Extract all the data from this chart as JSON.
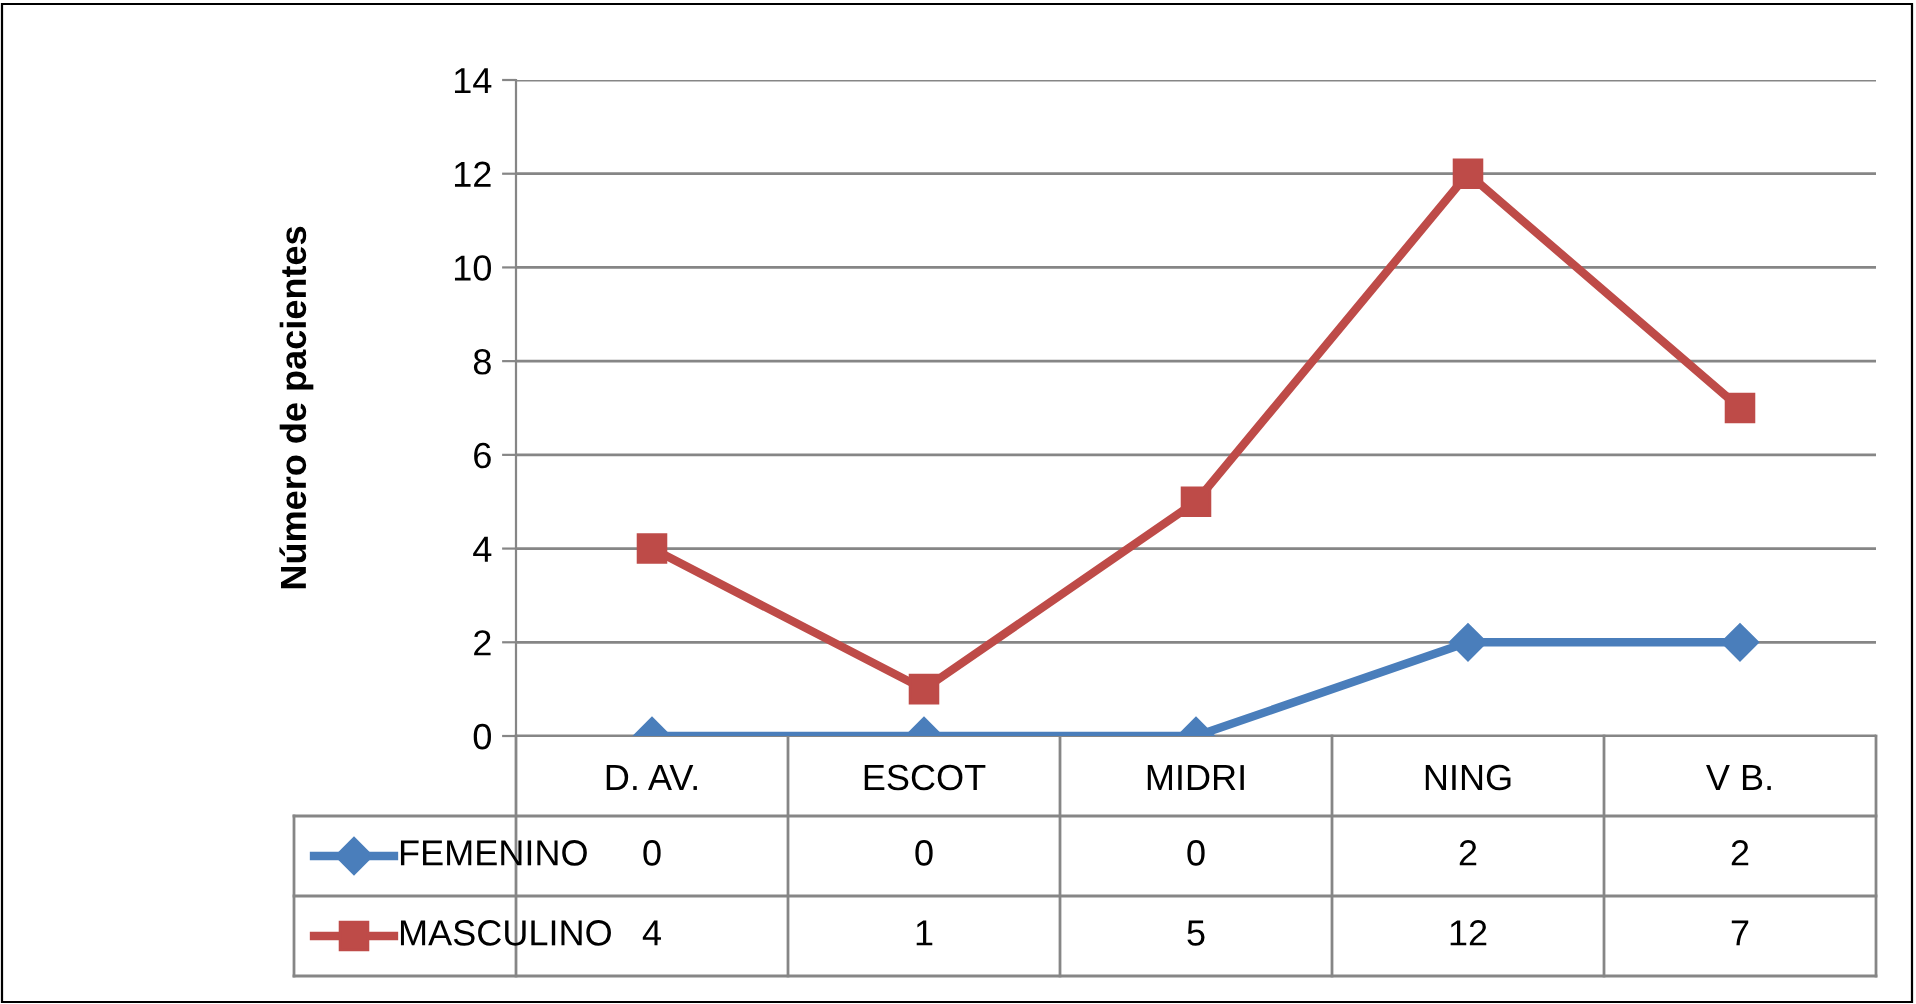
{
  "chart_data": {
    "type": "line",
    "ylabel": "Número de pacientes",
    "categories": [
      "D. AV.",
      "ESCOT",
      "MIDRI",
      "NING",
      "V B."
    ],
    "series": [
      {
        "name": "FEMENINO",
        "color": "#4a7ebb",
        "marker": "diamond",
        "values": [
          0,
          0,
          0,
          2,
          2
        ]
      },
      {
        "name": "MASCULINO",
        "color": "#be4b48",
        "marker": "square",
        "values": [
          4,
          1,
          5,
          12,
          7
        ]
      }
    ],
    "ylim": [
      0,
      14
    ],
    "yticks": [
      0,
      2,
      4,
      6,
      8,
      10,
      12,
      14
    ],
    "grid": "y",
    "legend": "bottom",
    "data_labels": true,
    "line_style": "solid"
  }
}
